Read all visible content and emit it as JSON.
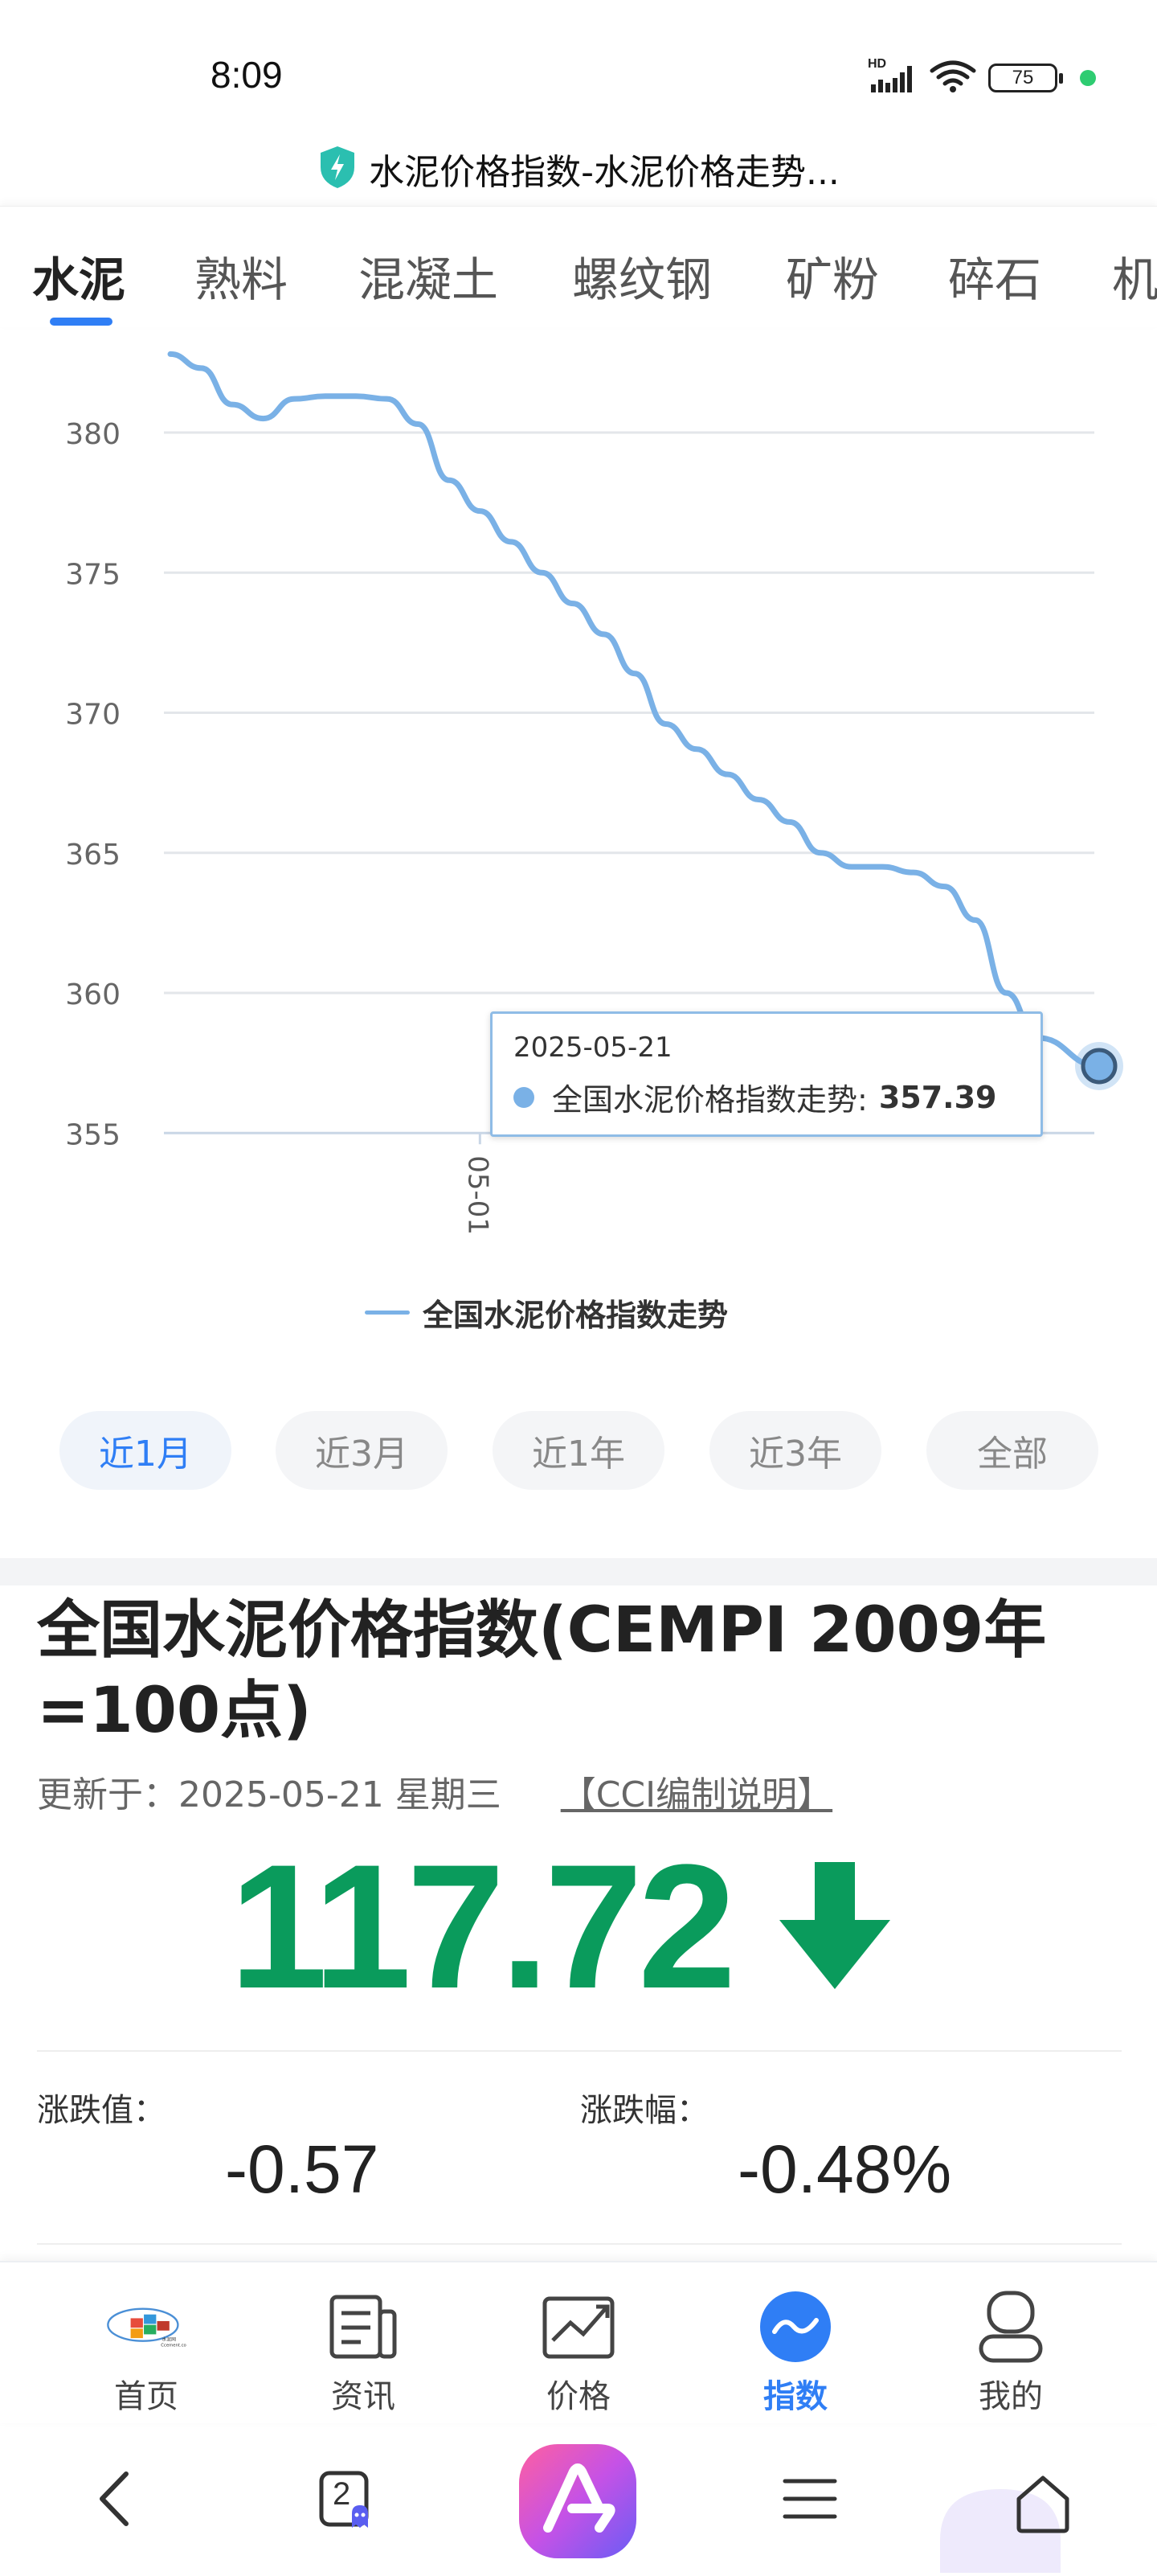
{
  "status_bar": {
    "time": "8:09",
    "network": "HD",
    "battery": "75"
  },
  "page": {
    "title": "水泥价格指数-水泥价格走势..."
  },
  "tabs": [
    {
      "label": "水泥",
      "active": true
    },
    {
      "label": "熟料"
    },
    {
      "label": "混凝土"
    },
    {
      "label": "螺纹钢"
    },
    {
      "label": "矿粉"
    },
    {
      "label": "碎石"
    },
    {
      "label": "机"
    }
  ],
  "chart_data": {
    "type": "line",
    "series": [
      {
        "name": "全国水泥价格指数走势",
        "color": "#7ab1e6",
        "points": [
          [
            "2025-04-21",
            382.8
          ],
          [
            "2025-04-22",
            382.3
          ],
          [
            "2025-04-23",
            381.0
          ],
          [
            "2025-04-24",
            380.5
          ],
          [
            "2025-04-25",
            381.2
          ],
          [
            "2025-04-26",
            381.3
          ],
          [
            "2025-04-27",
            381.3
          ],
          [
            "2025-04-28",
            381.2
          ],
          [
            "2025-04-29",
            380.3
          ],
          [
            "2025-04-30",
            378.3
          ],
          [
            "2025-05-01",
            377.2
          ],
          [
            "2025-05-02",
            376.1
          ],
          [
            "2025-05-03",
            375.0
          ],
          [
            "2025-05-04",
            373.9
          ],
          [
            "2025-05-05",
            372.8
          ],
          [
            "2025-05-06",
            371.4
          ],
          [
            "2025-05-07",
            369.6
          ],
          [
            "2025-05-08",
            368.7
          ],
          [
            "2025-05-09",
            367.8
          ],
          [
            "2025-05-10",
            366.9
          ],
          [
            "2025-05-11",
            366.1
          ],
          [
            "2025-05-12",
            365.0
          ],
          [
            "2025-05-13",
            364.5
          ],
          [
            "2025-05-14",
            364.5
          ],
          [
            "2025-05-15",
            364.3
          ],
          [
            "2025-05-16",
            363.8
          ],
          [
            "2025-05-17",
            362.6
          ],
          [
            "2025-05-18",
            360.0
          ],
          [
            "2025-05-19",
            358.4
          ],
          [
            "2025-05-21",
            357.39
          ]
        ]
      }
    ],
    "y_ticks": [
      380,
      375,
      370,
      365,
      360,
      355
    ],
    "ylim": [
      355,
      383
    ],
    "x_ticks": [
      "05-01"
    ],
    "grid": true,
    "legend_position": "bottom-center",
    "tooltip": {
      "date": "2025-05-21",
      "label": "全国水泥价格指数走势",
      "value": "357.39"
    }
  },
  "tooltip_text": {
    "date": "2025-05-21",
    "label": "全国水泥价格指数走势:",
    "value": "357.39"
  },
  "legend_label": "全国水泥价格指数走势",
  "ranges": [
    {
      "label": "近1月",
      "active": true
    },
    {
      "label": "近3月"
    },
    {
      "label": "近1年"
    },
    {
      "label": "近3年"
    },
    {
      "label": "全部"
    }
  ],
  "index": {
    "title": "全国水泥价格指数(CEMPI 2009年=100点)",
    "updated": "更新于：2025-05-21 星期三",
    "cci_link": "【CCI编制说明】",
    "value": "117.72",
    "trend": "down",
    "change_label": "涨跌值：",
    "change_value": "-0.57",
    "change_pct_label": "涨跌幅：",
    "change_pct_value": "-0.48%",
    "accent_color": "#0a9b5c"
  },
  "bottom_nav": [
    {
      "label": "首页",
      "icon": "home-logo-icon"
    },
    {
      "label": "资讯",
      "icon": "news-icon"
    },
    {
      "label": "价格",
      "icon": "price-chart-icon"
    },
    {
      "label": "指数",
      "icon": "index-icon",
      "active": true
    },
    {
      "label": "我的",
      "icon": "profile-icon"
    }
  ],
  "system_nav": {
    "tabs_count": "2"
  }
}
